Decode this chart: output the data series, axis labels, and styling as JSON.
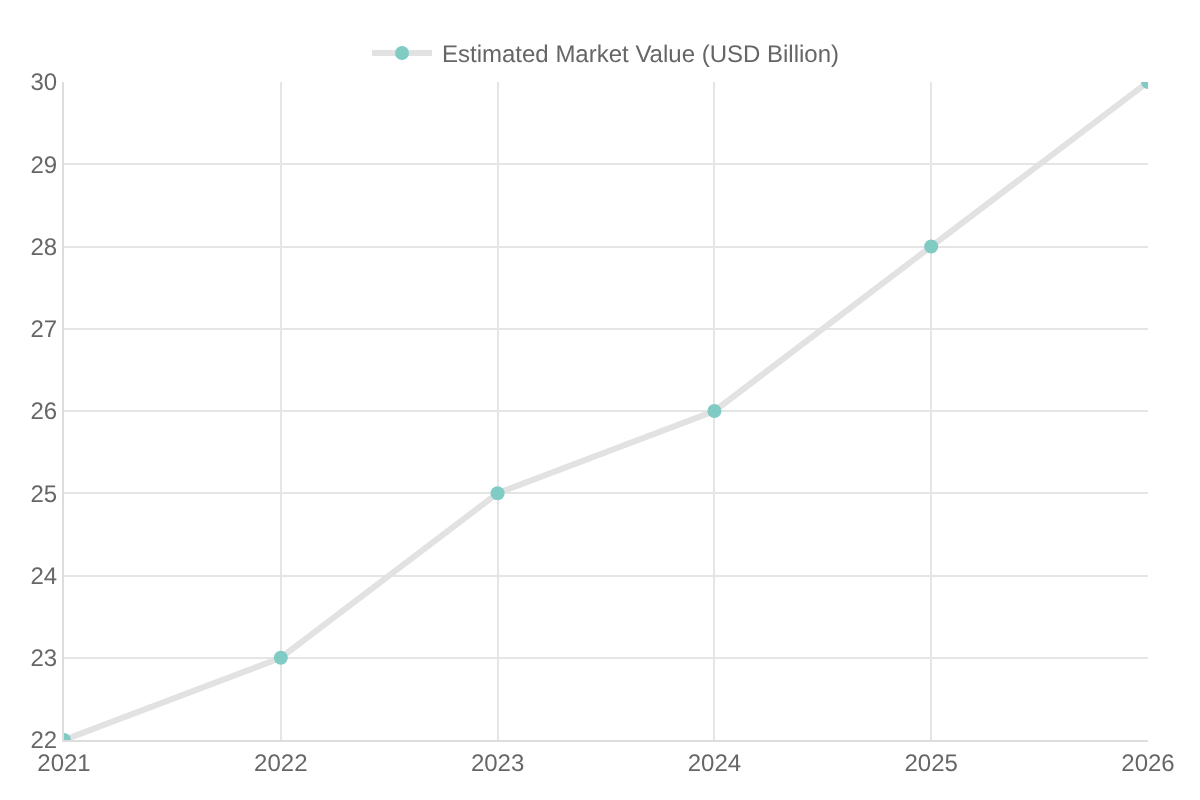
{
  "chart_data": {
    "type": "line",
    "categories": [
      "2021",
      "2022",
      "2023",
      "2024",
      "2025",
      "2026"
    ],
    "series": [
      {
        "name": "Estimated Market Value (USD Billion)",
        "color": "#80cbc4",
        "values": [
          22,
          23,
          25,
          26,
          28,
          30
        ]
      }
    ],
    "ylim": [
      22,
      30
    ],
    "yticks": [
      22,
      23,
      24,
      25,
      26,
      27,
      28,
      29,
      30
    ],
    "grid": true,
    "legend": "top",
    "marker": "circle",
    "line_style": "solid"
  }
}
